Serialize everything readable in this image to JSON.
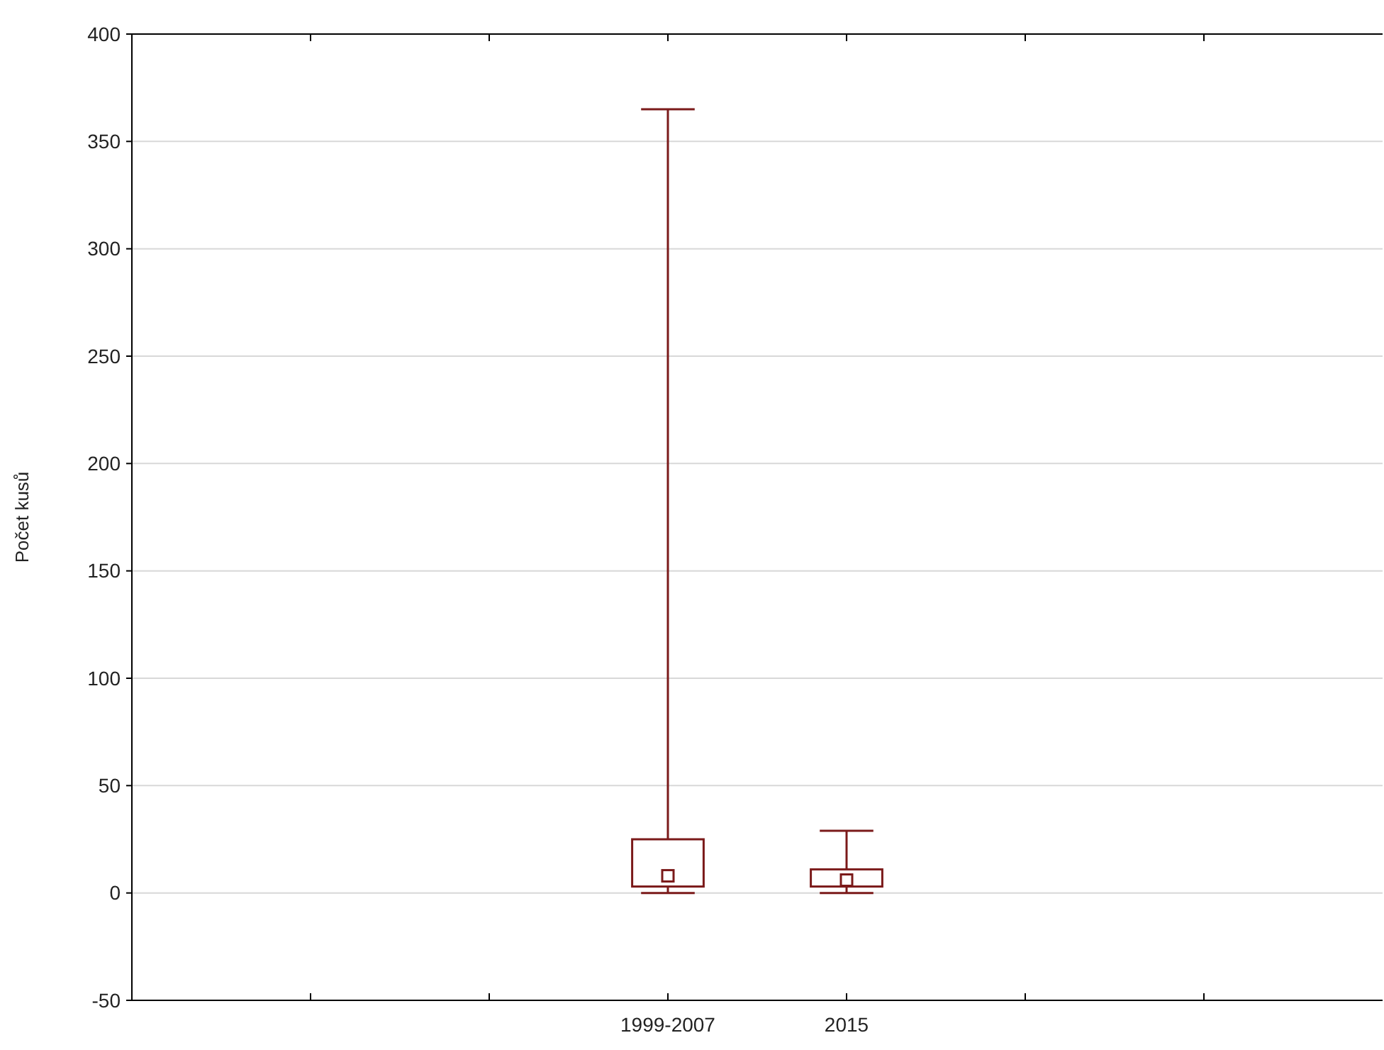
{
  "chart_data": {
    "type": "box",
    "ylabel": "Počet kusů",
    "categories": [
      "1999-2007",
      "2015"
    ],
    "color": "#7b1a1a",
    "boxes": [
      {
        "low": 0,
        "q1": 3,
        "median": 8,
        "q3": 25,
        "high": 365
      },
      {
        "low": 0,
        "q1": 3,
        "median": 6,
        "q3": 11,
        "high": 29
      }
    ],
    "ylim": [
      -50,
      400
    ],
    "yticks": [
      -50,
      0,
      50,
      100,
      150,
      200,
      250,
      300,
      350,
      400
    ],
    "grid": "y",
    "marker": "square"
  }
}
